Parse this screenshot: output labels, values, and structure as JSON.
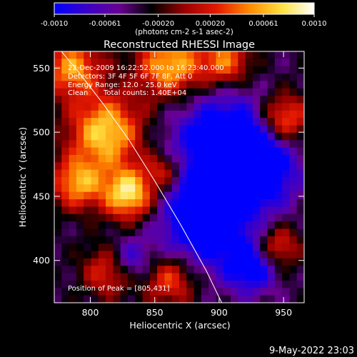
{
  "chart_data": {
    "type": "heatmap",
    "title": "Reconstructed RHESSI Image",
    "xlabel": "Heliocentric X (arcsec)",
    "ylabel": "Heliocentric Y (arcsec)",
    "xlim": [
      772,
      966
    ],
    "ylim": [
      367,
      563
    ],
    "x_ticks": [
      800,
      850,
      900,
      950
    ],
    "y_ticks": [
      400,
      450,
      500,
      550
    ],
    "colorbar": {
      "range": [
        -0.001,
        0.001
      ],
      "ticks": [
        "-0.0010",
        "-0.00061",
        "-0.00020",
        "0.00020",
        "0.00061",
        "0.0010"
      ],
      "tick_values": [
        -0.001,
        -0.00061,
        -0.0002,
        0.0002,
        0.00061,
        0.001
      ],
      "units_label": "(photons cm-2 s-1 asec-2)",
      "colormap": [
        "#0000ff",
        "#3c00c8",
        "#690093",
        "#000000",
        "#9b0000",
        "#e41900",
        "#ff8a00",
        "#ffe040",
        "#ffffff"
      ]
    },
    "annotations": {
      "time_range": "22-Dec-2009 16:22:52.000 to 16:23:40.000",
      "detectors": "Detectors: 3F 4F 5F 6F 7F 8F, Att 0",
      "energy_range": "Energy Range: 12.0 - 25.0 keV",
      "clean": "Clean",
      "total_counts": "Total counts: 1.40E+04",
      "peak": "Position of Peak = [805,431]"
    },
    "peak": {
      "x": 805,
      "y": 431
    },
    "limb_curve": [
      [
        770,
        572
      ],
      [
        790,
        548
      ],
      [
        810,
        522
      ],
      [
        830,
        494
      ],
      [
        850,
        462
      ],
      [
        870,
        428
      ],
      [
        890,
        392
      ],
      [
        902,
        367
      ]
    ],
    "bright_sources": [
      {
        "x": 786,
        "y": 550,
        "sigma": 16,
        "amp": 0.0009
      },
      {
        "x": 812,
        "y": 500,
        "sigma": 20,
        "amp": 0.0011
      },
      {
        "x": 830,
        "y": 452,
        "sigma": 14,
        "amp": 0.0012
      },
      {
        "x": 790,
        "y": 460,
        "sigma": 14,
        "amp": 0.0009
      },
      {
        "x": 862,
        "y": 552,
        "sigma": 18,
        "amp": 0.001
      },
      {
        "x": 905,
        "y": 555,
        "sigma": 14,
        "amp": 0.0008
      },
      {
        "x": 950,
        "y": 510,
        "sigma": 14,
        "amp": 0.0009
      },
      {
        "x": 862,
        "y": 385,
        "sigma": 14,
        "amp": 0.0007
      },
      {
        "x": 815,
        "y": 392,
        "sigma": 14,
        "amp": 0.0007
      },
      {
        "x": 945,
        "y": 410,
        "sigma": 12,
        "amp": 0.0007
      },
      {
        "x": 858,
        "y": 470,
        "sigma": 10,
        "amp": 0.0006
      }
    ],
    "dim_regions": [
      {
        "x": 905,
        "y": 490,
        "sigma": 28,
        "amp": -0.001
      },
      {
        "x": 890,
        "y": 430,
        "sigma": 24,
        "amp": -0.001
      },
      {
        "x": 930,
        "y": 470,
        "sigma": 20,
        "amp": -0.0008
      },
      {
        "x": 830,
        "y": 400,
        "sigma": 12,
        "amp": -0.0006
      },
      {
        "x": 925,
        "y": 395,
        "sigma": 14,
        "amp": -0.0008
      }
    ]
  },
  "footer_timestamp": "9-May-2022 23:03"
}
